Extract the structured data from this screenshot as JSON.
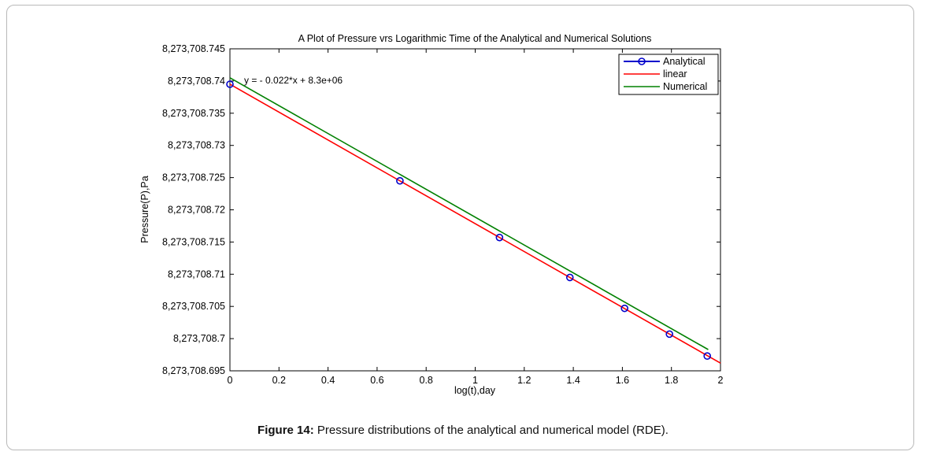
{
  "chart_data": {
    "type": "line",
    "title": "A Plot of Pressure vrs Logarithmic Time of the Analytical and Numerical Solutions",
    "xlabel": "log(t),day",
    "ylabel": "Pressure(P),Pa",
    "xlim": [
      0,
      2
    ],
    "ylim": [
      8273708.695,
      8273708.745
    ],
    "x_ticks": [
      0,
      0.2,
      0.4,
      0.6,
      0.8,
      1,
      1.2,
      1.4,
      1.6,
      1.8,
      2
    ],
    "x_tick_labels": [
      "0",
      "0.2",
      "0.4",
      "0.6",
      "0.8",
      "1",
      "1.2",
      "1.4",
      "1.6",
      "1.8",
      "2"
    ],
    "y_ticks": [
      8273708.745,
      8273708.74,
      8273708.735,
      8273708.73,
      8273708.725,
      8273708.72,
      8273708.715,
      8273708.71,
      8273708.705,
      8273708.7,
      8273708.695
    ],
    "y_tick_labels": [
      "8,273,708.745",
      "8,273,708.74",
      "8,273,708.735",
      "8,273,708.73",
      "8,273,708.725",
      "8,273,708.72",
      "8,273,708.715",
      "8,273,708.71",
      "8,273,708.705",
      "8,273,708.7",
      "8,273,708.695"
    ],
    "annotation": "y = - 0.022*x + 8.3e+06",
    "legend_position": "top-right",
    "grid": false,
    "series": [
      {
        "name": "Analytical",
        "color": "#0000cc",
        "style": "markers-o",
        "x": [
          0,
          0.693,
          1.099,
          1.386,
          1.609,
          1.792,
          1.946
        ],
        "y": [
          8273708.7395,
          8273708.7245,
          8273708.7157,
          8273708.7095,
          8273708.7047,
          8273708.7007,
          8273708.6973
        ]
      },
      {
        "name": "linear",
        "color": "#ff0000",
        "style": "line",
        "x": [
          0,
          2
        ],
        "y": [
          8273708.7395,
          8273708.6962
        ]
      },
      {
        "name": "Numerical",
        "color": "#008000",
        "style": "line",
        "x": [
          0,
          1.95
        ],
        "y": [
          8273708.7405,
          8273708.6983
        ]
      }
    ]
  },
  "caption": {
    "label": "Figure 14:",
    "text": " Pressure distributions of the analytical and numerical model (RDE)."
  }
}
